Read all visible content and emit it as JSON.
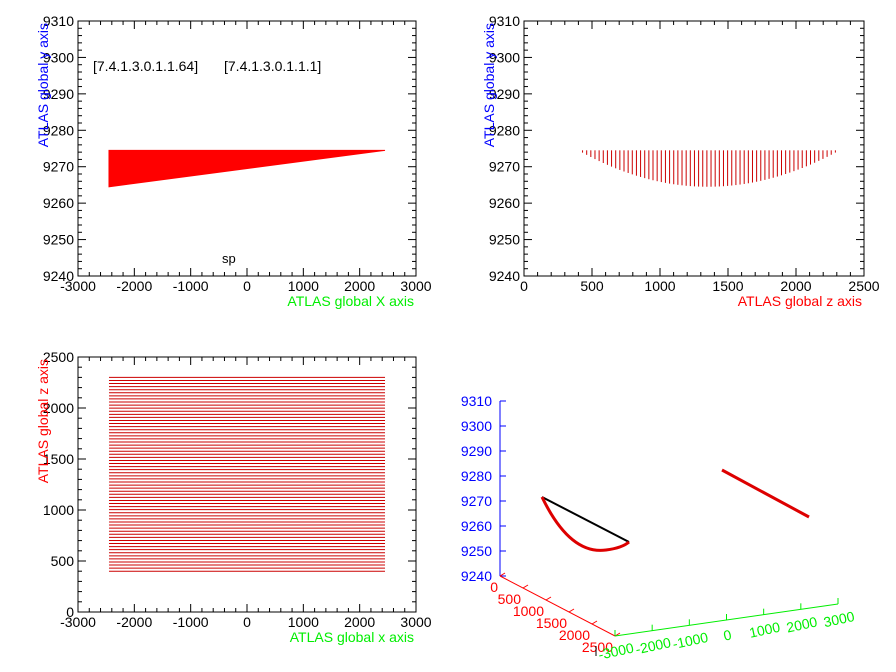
{
  "chart_data": [
    {
      "type": "area",
      "xlabel": "ATLAS global X axis",
      "ylabel": "ATLAS global y axis",
      "xlim": [
        -3000,
        3000
      ],
      "ylim": [
        9240,
        9310
      ],
      "xticks": [
        "-3000",
        "-2000",
        "-1000",
        "0",
        "1000",
        "2000",
        "3000"
      ],
      "yticks": [
        "9240",
        "9250",
        "9260",
        "9270",
        "9280",
        "9290",
        "9300",
        "9310"
      ],
      "annotations": [
        "[7.4.1.3.0.1.1.64]",
        "[7.4.1.3.0.1.1.1]",
        "sp"
      ],
      "polygon": [
        {
          "x": -2450,
          "y": 9274.5
        },
        {
          "x": 2450,
          "y": 9274.5
        },
        {
          "x": -2450,
          "y": 9264.5
        }
      ],
      "fill_color": "#ff0000"
    },
    {
      "type": "line",
      "xlabel": "ATLAS global z axis",
      "ylabel": "ATLAS global y axis",
      "xlim": [
        0,
        2500
      ],
      "ylim": [
        9240,
        9310
      ],
      "xticks": [
        "0",
        "500",
        "1000",
        "1500",
        "2000",
        "2500"
      ],
      "yticks": [
        "9240",
        "9250",
        "9260",
        "9270",
        "9280",
        "9290",
        "9300",
        "9310"
      ],
      "series": [
        {
          "style": "vertical-lines",
          "z_range": [
            400,
            2320
          ],
          "y_top": 9274.5,
          "y_bottom_min": 9264.5,
          "y_bottom_at": 1350,
          "line_count": 64,
          "color": "#cc0000"
        }
      ]
    },
    {
      "type": "line",
      "xlabel": "ATLAS global x axis",
      "ylabel": "ATLAS global z axis",
      "xlim": [
        -3000,
        3000
      ],
      "ylim": [
        0,
        2500
      ],
      "xticks": [
        "-3000",
        "-2000",
        "-1000",
        "0",
        "1000",
        "2000",
        "3000"
      ],
      "yticks": [
        "0",
        "500",
        "1000",
        "1500",
        "2000",
        "2500"
      ],
      "series": [
        {
          "style": "horizontal-lines",
          "x_range": [
            -2450,
            2450
          ],
          "z_range": [
            400,
            2300
          ],
          "line_count": 64,
          "color": "#cc0000"
        }
      ]
    },
    {
      "type": "line",
      "view": "3d",
      "axis_y_ticks": [
        "9240",
        "9250",
        "9260",
        "9270",
        "9280",
        "9290",
        "9300",
        "9310"
      ],
      "axis_z_ticks": [
        "0",
        "500",
        "1000",
        "1500",
        "2000",
        "2500"
      ],
      "axis_x_ticks": [
        "-3000",
        "-2000",
        "-1000",
        "0",
        "1000",
        "2000",
        "3000"
      ],
      "axis_colors": {
        "y": "#0000ff",
        "z": "#ff0000",
        "x": "#00ee00"
      }
    }
  ]
}
